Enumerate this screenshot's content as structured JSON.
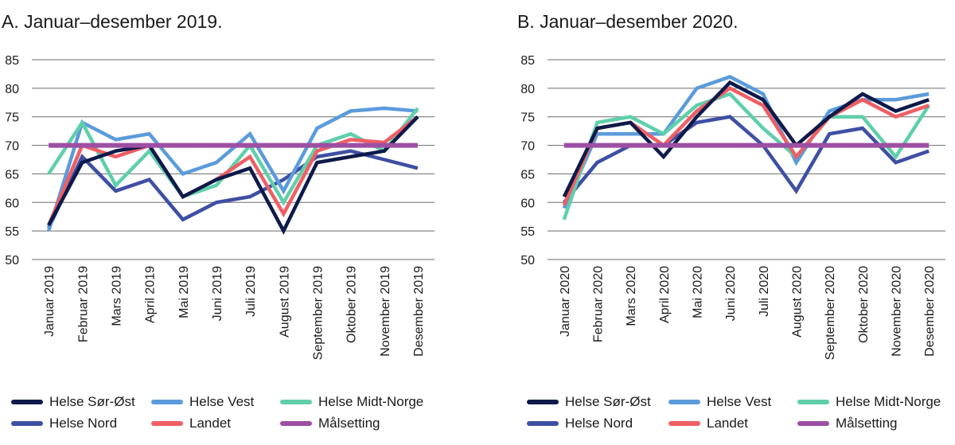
{
  "chart_data": [
    {
      "type": "line",
      "title": "A. Januar–desember 2019.",
      "categories": [
        "Januar 2019",
        "Februar 2019",
        "Mars 2019",
        "April 2019",
        "Mai 2019",
        "Juni 2019",
        "Juli 2019",
        "August 2019",
        "September 2019",
        "Oktober 2019",
        "November 2019",
        "Desember 2019"
      ],
      "ylim": [
        50,
        85
      ],
      "yticks": [
        50,
        55,
        60,
        65,
        70,
        75,
        80,
        85
      ],
      "grid": "horizontal",
      "series": [
        {
          "name": "Helse Sør-Øst",
          "color": "#0d1a4a",
          "values": [
            56,
            67,
            69,
            70,
            61,
            64,
            66,
            55,
            67,
            68,
            69,
            75
          ]
        },
        {
          "name": "Helse Vest",
          "color": "#5b9bdb",
          "values": [
            55,
            74,
            71,
            72,
            65,
            67,
            72,
            62,
            73,
            76,
            76.5,
            76
          ]
        },
        {
          "name": "Helse Midt-Norge",
          "color": "#5fcfab",
          "values": [
            65,
            74,
            63,
            69,
            61,
            63,
            70,
            60,
            70,
            72,
            69,
            76.5
          ]
        },
        {
          "name": "Helse Nord",
          "color": "#3e4fa3",
          "values": [
            55.5,
            68,
            62,
            64,
            57,
            60,
            61,
            64,
            68,
            69,
            67.5,
            66
          ]
        },
        {
          "name": "Landet",
          "color": "#ef5e63",
          "values": [
            56,
            70,
            68,
            70,
            61,
            64,
            68,
            58,
            69,
            71,
            70.5,
            75
          ]
        },
        {
          "name": "Målsetting",
          "color": "#9d4fa3",
          "values": [
            70,
            70,
            70,
            70,
            70,
            70,
            70,
            70,
            70,
            70,
            70,
            70
          ]
        }
      ]
    },
    {
      "type": "line",
      "title": "B. Januar–desember 2020.",
      "categories": [
        "Januar 2020",
        "Februar 2020",
        "Mars 2020",
        "April 2020",
        "Mai 2020",
        "Juni 2020",
        "Juli 2020",
        "August 2020",
        "September 2020",
        "Oktober 2020",
        "November 2020",
        "Desember 2020"
      ],
      "ylim": [
        50,
        85
      ],
      "yticks": [
        50,
        55,
        60,
        65,
        70,
        75,
        80,
        85
      ],
      "grid": "horizontal",
      "series": [
        {
          "name": "Helse Sør-Øst",
          "color": "#0d1a4a",
          "values": [
            61,
            73,
            74,
            68,
            75,
            81,
            78,
            70,
            75,
            79,
            76,
            78
          ]
        },
        {
          "name": "Helse Vest",
          "color": "#5b9bdb",
          "values": [
            59,
            72,
            72,
            72,
            80,
            82,
            79,
            67,
            76,
            78,
            78,
            79
          ]
        },
        {
          "name": "Helse Midt-Norge",
          "color": "#5fcfab",
          "values": [
            57,
            74,
            75,
            72,
            77,
            79,
            73,
            68,
            75,
            75,
            68,
            77
          ]
        },
        {
          "name": "Helse Nord",
          "color": "#3e4fa3",
          "values": [
            60,
            67,
            70,
            70,
            74,
            75,
            70,
            62,
            72,
            73,
            67,
            69
          ]
        },
        {
          "name": "Landet",
          "color": "#ef5e63",
          "values": [
            59.5,
            73,
            74,
            70,
            76,
            80,
            77,
            68,
            75,
            78,
            75,
            77
          ]
        },
        {
          "name": "Målsetting",
          "color": "#9d4fa3",
          "values": [
            70,
            70,
            70,
            70,
            70,
            70,
            70,
            70,
            70,
            70,
            70,
            70
          ]
        }
      ]
    }
  ]
}
